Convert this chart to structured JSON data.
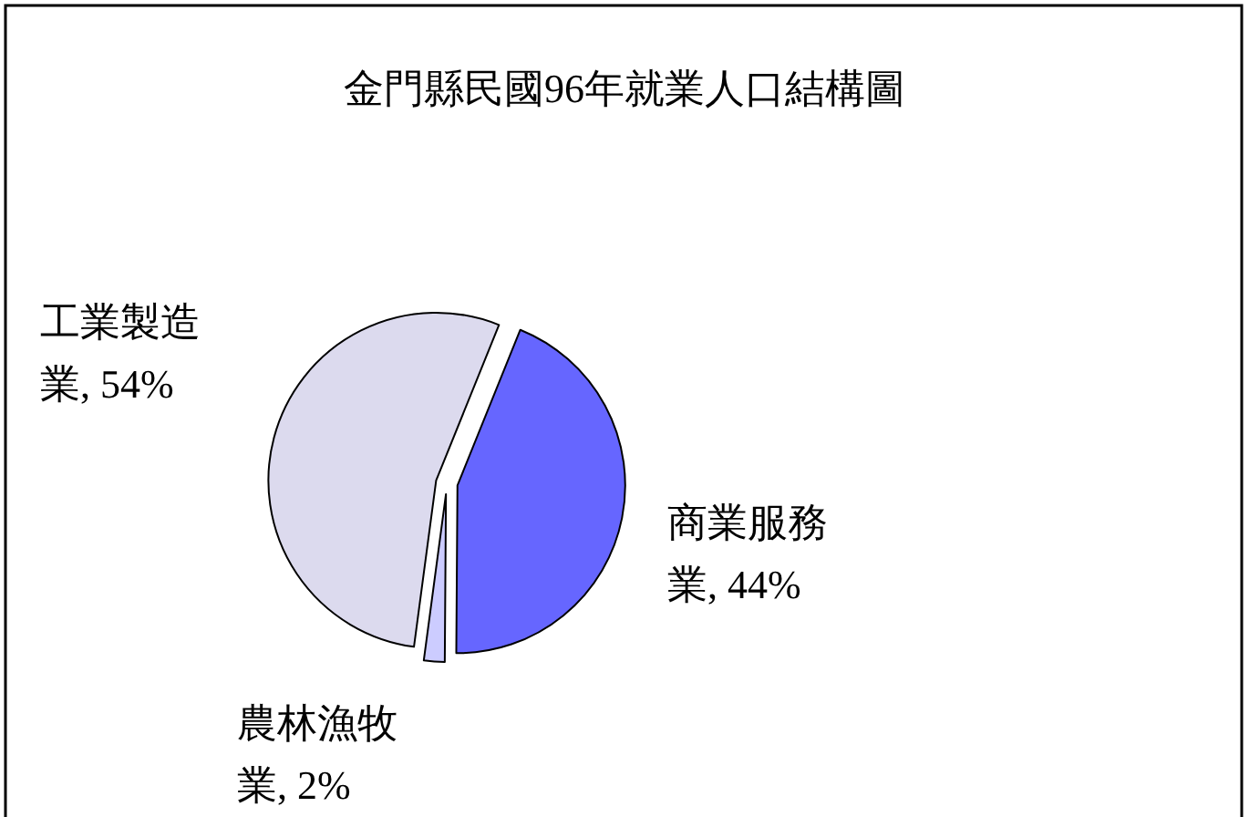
{
  "chart_data": {
    "type": "pie",
    "title": "金門縣民國96年就業人口結構圖",
    "categories": [
      "商業服務業",
      "農林漁牧業",
      "工業製造業"
    ],
    "values": [
      44,
      2,
      54
    ],
    "value_labels": [
      ", 44%",
      ", 2%",
      ", 54%"
    ],
    "colors": [
      "#6666ff",
      "#ccccff",
      "#dcdaee"
    ]
  }
}
